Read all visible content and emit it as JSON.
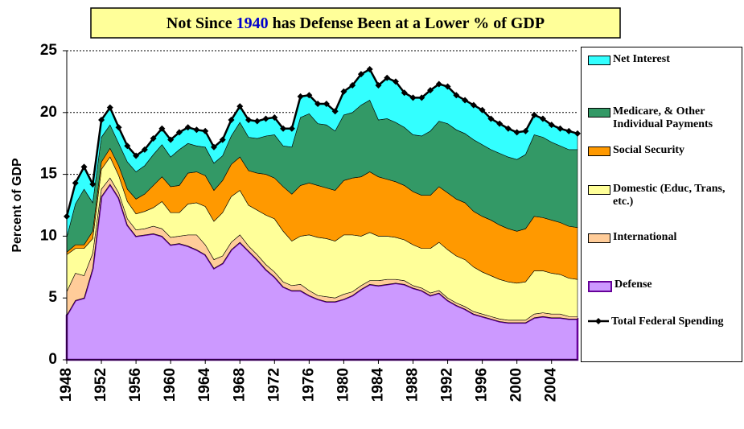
{
  "chart_data": {
    "type": "stacked_area",
    "title": [
      "Not Since",
      "1940",
      "has Defense Been at a Lower % of GDP"
    ],
    "y_label": "Percent of GDP",
    "x": [
      1948,
      1949,
      1950,
      1951,
      1952,
      1953,
      1954,
      1955,
      1956,
      1957,
      1958,
      1959,
      1960,
      1961,
      1962,
      1963,
      1964,
      1965,
      1966,
      1967,
      1968,
      1969,
      1970,
      1971,
      1972,
      1973,
      1974,
      1975,
      1976,
      1977,
      1978,
      1979,
      1980,
      1981,
      1982,
      1983,
      1984,
      1985,
      1986,
      1987,
      1988,
      1989,
      1990,
      1991,
      1992,
      1993,
      1994,
      1995,
      1996,
      1997,
      1998,
      1999,
      2000,
      2001,
      2002,
      2003,
      2004,
      2005,
      2006,
      2007
    ],
    "xlim": [
      1948,
      2007
    ],
    "xticks": [
      1948,
      1952,
      1956,
      1960,
      1964,
      1968,
      1972,
      1976,
      1980,
      1984,
      1988,
      1992,
      1996,
      2000,
      2004
    ],
    "ylim": [
      0,
      25
    ],
    "yticks": [
      0,
      5,
      10,
      15,
      20,
      25
    ],
    "grid": true,
    "series": [
      {
        "name": "Defense",
        "color": "#cc99ff",
        "edge": "#660099",
        "values": [
          3.6,
          4.8,
          5.0,
          7.4,
          13.2,
          14.2,
          13.1,
          10.9,
          10.0,
          10.1,
          10.2,
          10.0,
          9.3,
          9.4,
          9.2,
          8.9,
          8.5,
          7.4,
          7.8,
          8.9,
          9.5,
          8.8,
          8.1,
          7.3,
          6.7,
          5.9,
          5.6,
          5.6,
          5.2,
          4.9,
          4.7,
          4.7,
          4.9,
          5.2,
          5.7,
          6.1,
          6.0,
          6.1,
          6.2,
          6.1,
          5.8,
          5.6,
          5.2,
          5.4,
          4.8,
          4.4,
          4.1,
          3.7,
          3.5,
          3.3,
          3.1,
          3.0,
          3.0,
          3.0,
          3.4,
          3.5,
          3.4,
          3.4,
          3.3,
          3.3
        ]
      },
      {
        "name": "International",
        "color": "#ffcc99",
        "values": [
          1.9,
          2.2,
          1.8,
          1.2,
          0.6,
          0.5,
          0.4,
          0.5,
          0.5,
          0.5,
          0.6,
          0.6,
          0.6,
          0.6,
          0.9,
          1.2,
          0.8,
          0.7,
          0.6,
          0.6,
          0.6,
          0.4,
          0.4,
          0.4,
          0.4,
          0.4,
          0.4,
          0.5,
          0.4,
          0.3,
          0.4,
          0.3,
          0.4,
          0.3,
          0.3,
          0.3,
          0.4,
          0.4,
          0.3,
          0.3,
          0.2,
          0.2,
          0.2,
          0.2,
          0.2,
          0.2,
          0.2,
          0.2,
          0.2,
          0.2,
          0.2,
          0.2,
          0.2,
          0.2,
          0.3,
          0.3,
          0.3,
          0.3,
          0.2,
          0.2
        ]
      },
      {
        "name": "Domestic (Educ, Trans, etc.)",
        "color": "#ffff99",
        "values": [
          3.0,
          2.0,
          2.2,
          1.2,
          1.6,
          1.7,
          1.4,
          1.4,
          1.3,
          1.4,
          1.5,
          2.2,
          2.0,
          1.9,
          2.5,
          2.6,
          3.1,
          3.1,
          3.5,
          3.7,
          3.6,
          3.3,
          3.6,
          4.0,
          4.3,
          4.1,
          3.6,
          3.9,
          4.5,
          4.7,
          4.7,
          4.6,
          4.8,
          4.6,
          4.0,
          3.9,
          3.6,
          3.5,
          3.4,
          3.3,
          3.3,
          3.2,
          3.6,
          3.9,
          3.9,
          3.8,
          3.8,
          3.6,
          3.4,
          3.3,
          3.2,
          3.1,
          3.0,
          3.1,
          3.5,
          3.4,
          3.3,
          3.2,
          3.1,
          3.0
        ]
      },
      {
        "name": "Social Security",
        "color": "#ff9900",
        "values": [
          0.2,
          0.3,
          0.3,
          0.6,
          0.6,
          0.7,
          0.8,
          1.0,
          1.2,
          1.4,
          1.8,
          2.0,
          2.1,
          2.2,
          2.5,
          2.5,
          2.5,
          2.5,
          2.6,
          2.6,
          2.7,
          2.8,
          3.0,
          3.3,
          3.3,
          3.6,
          3.8,
          4.1,
          4.2,
          4.2,
          4.1,
          4.1,
          4.4,
          4.6,
          4.8,
          4.9,
          4.8,
          4.6,
          4.5,
          4.4,
          4.3,
          4.3,
          4.3,
          4.5,
          4.6,
          4.6,
          4.6,
          4.5,
          4.5,
          4.5,
          4.4,
          4.3,
          4.2,
          4.3,
          4.4,
          4.3,
          4.3,
          4.2,
          4.2,
          4.2
        ]
      },
      {
        "name": "Medicare, & Other Individual Payments",
        "color": "#339966",
        "values": [
          1.2,
          3.3,
          4.5,
          2.3,
          2.0,
          1.9,
          1.8,
          2.2,
          2.2,
          2.3,
          2.5,
          2.6,
          2.4,
          2.9,
          2.4,
          2.1,
          2.3,
          2.2,
          2.0,
          2.3,
          2.8,
          2.7,
          2.8,
          3.1,
          3.5,
          3.3,
          3.8,
          5.5,
          5.6,
          5.0,
          5.1,
          4.8,
          5.3,
          5.3,
          5.8,
          5.8,
          4.6,
          4.9,
          4.8,
          4.7,
          4.6,
          4.8,
          5.2,
          5.3,
          5.6,
          5.6,
          5.6,
          5.8,
          5.8,
          5.7,
          5.8,
          5.8,
          5.8,
          6.0,
          6.6,
          6.5,
          6.3,
          6.2,
          6.2,
          6.3
        ]
      },
      {
        "name": "Net Interest",
        "color": "#33ffff",
        "values": [
          1.7,
          1.7,
          1.8,
          1.5,
          1.4,
          1.4,
          1.3,
          1.3,
          1.3,
          1.3,
          1.3,
          1.3,
          1.4,
          1.4,
          1.3,
          1.3,
          1.3,
          1.3,
          1.3,
          1.3,
          1.3,
          1.4,
          1.4,
          1.4,
          1.4,
          1.4,
          1.5,
          1.7,
          1.5,
          1.6,
          1.7,
          1.6,
          1.9,
          2.2,
          2.5,
          2.5,
          2.8,
          3.3,
          3.3,
          2.8,
          3.0,
          3.1,
          3.3,
          3.0,
          3.0,
          2.8,
          2.7,
          2.8,
          2.8,
          2.5,
          2.4,
          2.3,
          2.2,
          1.9,
          1.6,
          1.5,
          1.4,
          1.4,
          1.5,
          1.3
        ]
      }
    ],
    "total": {
      "name": "Total Federal Spending",
      "color": "#000000",
      "values": [
        11.6,
        14.3,
        15.6,
        14.2,
        19.4,
        20.4,
        18.8,
        17.3,
        16.5,
        17.0,
        17.9,
        18.7,
        17.8,
        18.4,
        18.8,
        18.6,
        18.5,
        17.2,
        17.8,
        19.4,
        20.5,
        19.4,
        19.3,
        19.5,
        19.6,
        18.7,
        18.7,
        21.3,
        21.4,
        20.7,
        20.7,
        20.1,
        21.7,
        22.2,
        23.1,
        23.5,
        22.2,
        22.8,
        22.5,
        21.6,
        21.2,
        21.2,
        21.8,
        22.3,
        22.1,
        21.4,
        21.0,
        20.6,
        20.2,
        19.5,
        19.1,
        18.7,
        18.4,
        18.5,
        19.8,
        19.5,
        19.0,
        18.7,
        18.5,
        18.3
      ]
    }
  }
}
